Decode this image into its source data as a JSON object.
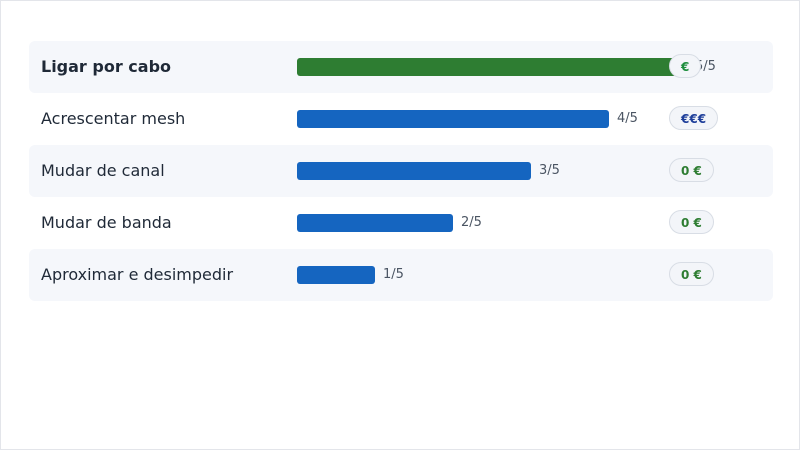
{
  "colors": {
    "best_bar": "#2e7d32",
    "bar": "#1565c0",
    "row_shade": "#f5f7fb",
    "badge_free": "#2e7d32",
    "badge_low": "#1565c0",
    "badge_high": "#1f3f9a"
  },
  "chart_data": {
    "type": "bar",
    "orientation": "horizontal",
    "title": "",
    "xlabel": "",
    "ylabel": "",
    "xlim": [
      0,
      5
    ],
    "grid": false,
    "categories": [
      "Ligar por cabo",
      "Acrescentar mesh",
      "Mudar de canal",
      "Mudar de banda",
      "Aproximar e desimpedir"
    ],
    "values": [
      5,
      4,
      3,
      2,
      1
    ],
    "value_labels": [
      "5/5",
      "4/5",
      "3/5",
      "2/5",
      "1/5"
    ],
    "cost_badges": [
      "€",
      "€€€",
      "0 €",
      "0 €",
      "0 €"
    ],
    "highlighted_category": "Ligar por cabo"
  }
}
